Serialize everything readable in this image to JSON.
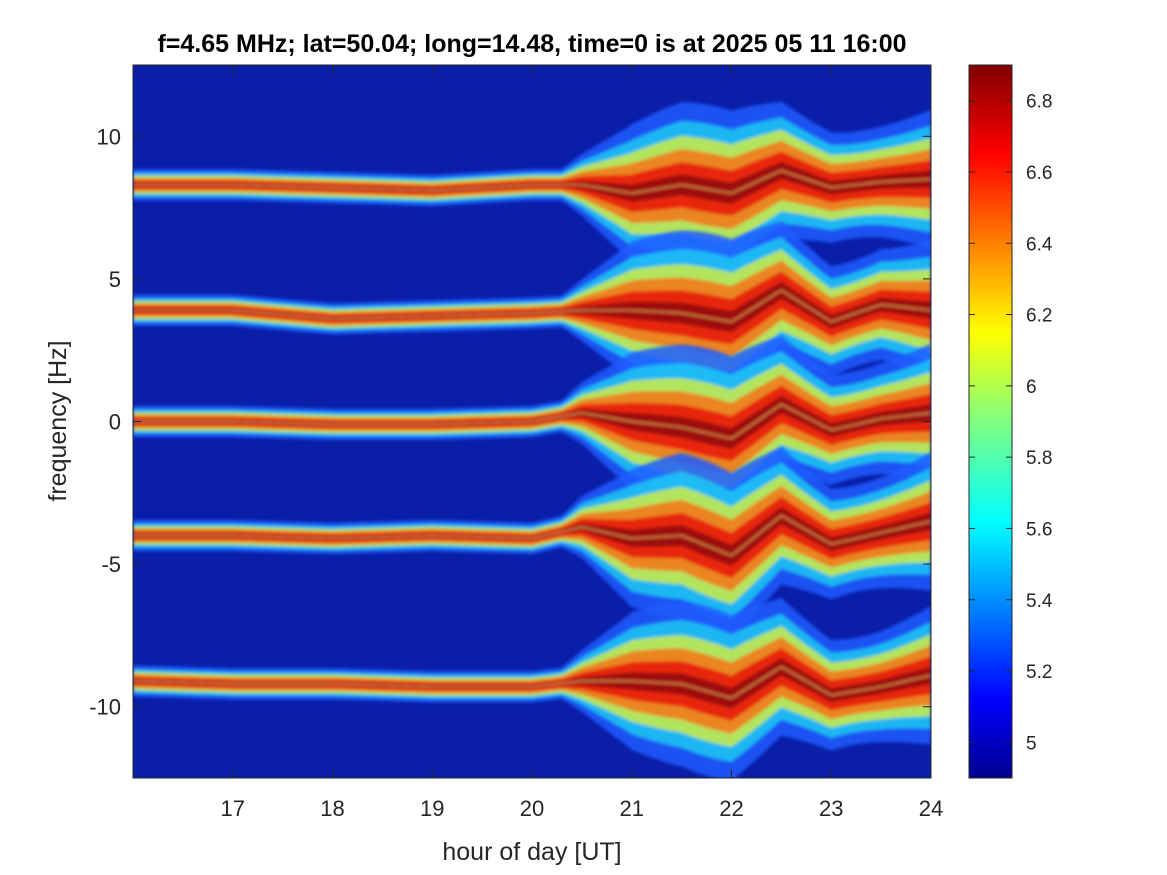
{
  "chart_data": {
    "type": "heatmap",
    "title": "f=4.65 MHz;  lat=50.04; long=14.48, time=0 is at 2025 05 11 16:00",
    "xlabel": "hour of day [UT]",
    "ylabel": "frequency [Hz]",
    "xlim": [
      16,
      24
    ],
    "ylim": [
      -12.5,
      12.5
    ],
    "x_ticks": [
      17,
      18,
      19,
      20,
      21,
      22,
      23,
      24
    ],
    "y_ticks": [
      10,
      5,
      0,
      -5,
      -10
    ],
    "colormap": "jet",
    "colorbar": {
      "range": [
        4.9,
        6.9
      ],
      "ticks": [
        6.8,
        6.6,
        6.4,
        6.2,
        6,
        5.8,
        5.6,
        5.4,
        5.2,
        5
      ]
    },
    "traces": [
      {
        "center_hz": 8.3,
        "points": [
          [
            16.0,
            8.3
          ],
          [
            17.0,
            8.3
          ],
          [
            18.0,
            8.2
          ],
          [
            19.0,
            8.1
          ],
          [
            20.0,
            8.3
          ],
          [
            20.5,
            8.3
          ],
          [
            21.0,
            8.0
          ],
          [
            21.5,
            8.3
          ],
          [
            22.0,
            8.0
          ],
          [
            22.5,
            8.8
          ],
          [
            23.0,
            8.2
          ],
          [
            23.5,
            8.4
          ],
          [
            24.0,
            8.5
          ]
        ]
      },
      {
        "center_hz": 4.0,
        "points": [
          [
            16.0,
            3.9
          ],
          [
            17.0,
            3.9
          ],
          [
            18.0,
            3.6
          ],
          [
            19.0,
            3.7
          ],
          [
            20.0,
            3.8
          ],
          [
            20.5,
            3.9
          ],
          [
            21.0,
            3.9
          ],
          [
            21.5,
            3.8
          ],
          [
            22.0,
            3.5
          ],
          [
            22.5,
            4.6
          ],
          [
            23.0,
            3.5
          ],
          [
            23.5,
            4.1
          ],
          [
            24.0,
            3.9
          ]
        ]
      },
      {
        "center_hz": 0.0,
        "points": [
          [
            16.0,
            0.0
          ],
          [
            17.0,
            0.0
          ],
          [
            18.0,
            -0.1
          ],
          [
            19.0,
            -0.1
          ],
          [
            20.0,
            0.0
          ],
          [
            20.5,
            0.3
          ],
          [
            21.0,
            0.0
          ],
          [
            21.5,
            -0.2
          ],
          [
            22.0,
            -0.6
          ],
          [
            22.5,
            0.6
          ],
          [
            23.0,
            -0.3
          ],
          [
            23.5,
            0.1
          ],
          [
            24.0,
            0.3
          ]
        ]
      },
      {
        "center_hz": -4.0,
        "points": [
          [
            16.0,
            -4.0
          ],
          [
            17.0,
            -4.0
          ],
          [
            18.0,
            -4.1
          ],
          [
            19.0,
            -4.0
          ],
          [
            20.0,
            -4.1
          ],
          [
            20.5,
            -3.7
          ],
          [
            21.0,
            -4.1
          ],
          [
            21.5,
            -4.0
          ],
          [
            22.0,
            -4.7
          ],
          [
            22.5,
            -3.3
          ],
          [
            23.0,
            -4.3
          ],
          [
            23.5,
            -3.9
          ],
          [
            24.0,
            -3.5
          ]
        ]
      },
      {
        "center_hz": -9.1,
        "points": [
          [
            16.0,
            -9.1
          ],
          [
            17.0,
            -9.2
          ],
          [
            18.0,
            -9.2
          ],
          [
            19.0,
            -9.3
          ],
          [
            20.0,
            -9.3
          ],
          [
            20.5,
            -9.1
          ],
          [
            21.0,
            -9.1
          ],
          [
            21.5,
            -9.2
          ],
          [
            22.0,
            -9.7
          ],
          [
            22.5,
            -8.6
          ],
          [
            23.0,
            -9.6
          ],
          [
            23.5,
            -9.3
          ],
          [
            24.0,
            -8.9
          ]
        ]
      }
    ]
  }
}
